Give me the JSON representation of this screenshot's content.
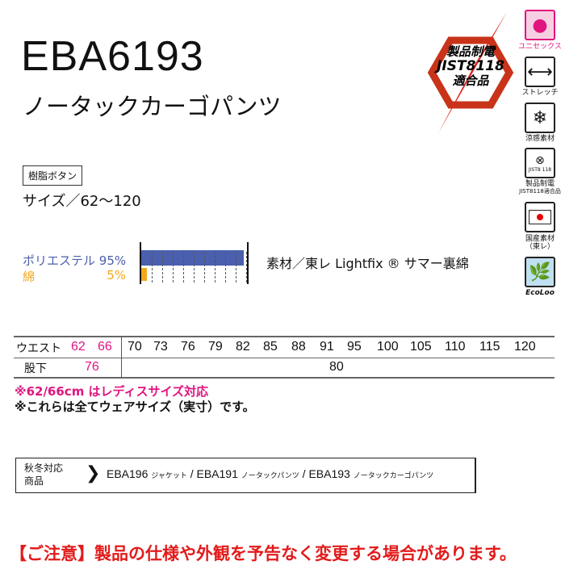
{
  "header": {
    "title": "EBA6193",
    "subtitle": "ノータックカーゴパンツ"
  },
  "tag": "樹脂ボタン",
  "size": "サイズ／62〜120",
  "materials": [
    {
      "name": "ポリエステル",
      "percent": "95%",
      "value": 95,
      "color": "#4a5fae"
    },
    {
      "name": "綿",
      "percent": "5%",
      "value": 5,
      "color": "#f2a81d"
    }
  ],
  "material_desc": "素材／東レ Lightfix ® サマー裏綿",
  "badge": {
    "line1": "製品制電",
    "line2": "JIST8118",
    "line3": "適合品"
  },
  "icons": [
    {
      "name": "unisex-icon",
      "label": "ユニセックス"
    },
    {
      "name": "stretch-icon",
      "label": "ストレッチ"
    },
    {
      "name": "snowflake-icon",
      "label": "涼感素材"
    },
    {
      "name": "antistatic-icon",
      "label": "製品制電",
      "sub": "JIST8118適合品",
      "inner": "JIST8 118"
    },
    {
      "name": "japan-flag-icon",
      "label": "国産素材",
      "sub": "（東レ）"
    },
    {
      "name": "ecoloo-icon",
      "label": "EcoLoo"
    }
  ],
  "size_table": {
    "waist_label": "ウエスト",
    "ladies_waist": [
      "62",
      "66"
    ],
    "waist": [
      "70",
      "73",
      "76",
      "79",
      "82",
      "85",
      "88",
      "91",
      "95",
      "100",
      "105",
      "110",
      "115",
      "120"
    ],
    "inseam_label": "股下",
    "ladies_inseam": "76",
    "inseam": "80"
  },
  "notes": [
    "※62/66cm はレディスサイズ対応",
    "※これらは全てウェアサイズ（実寸）です。"
  ],
  "series": {
    "label1": "秋冬対応",
    "label2": "商品",
    "items": [
      {
        "code": "EBA196",
        "name": "ジャケット"
      },
      {
        "code": "EBA191",
        "name": "ノータックパンツ"
      },
      {
        "code": "EBA193",
        "name": "ノータックカーゴパンツ"
      }
    ]
  },
  "caution": "【ご注意】製品の仕様や外観を予告なく変更する場合があります。"
}
